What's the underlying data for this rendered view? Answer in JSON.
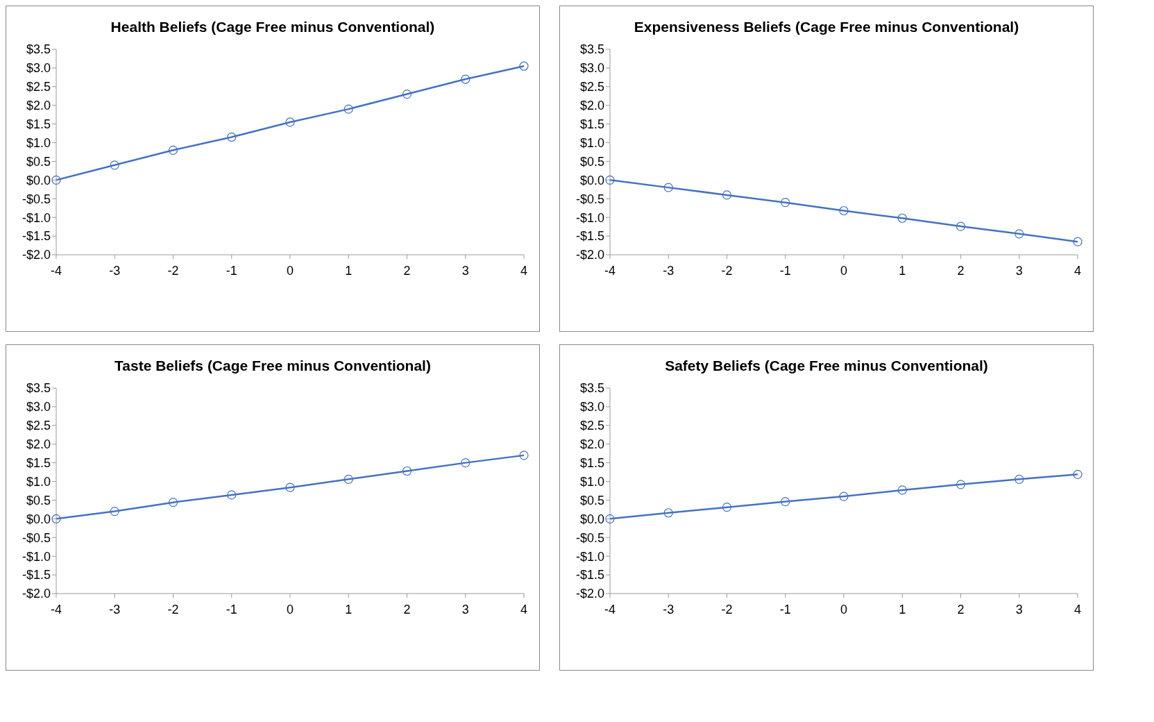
{
  "chart_data": [
    {
      "type": "line",
      "title": "Health Beliefs (Cage Free minus Conventional)",
      "categories": [
        "-4",
        "-3",
        "-2",
        "-1",
        "0",
        "1",
        "2",
        "3",
        "4"
      ],
      "series": [
        {
          "color": "#4472c4",
          "values": [
            0,
            0.4,
            0.8,
            1.15,
            1.55,
            1.9,
            2.3,
            2.7,
            3.05
          ]
        }
      ],
      "ylim": [
        -2,
        3.5
      ],
      "yticks": [
        {
          "value": -2,
          "label": "-$2.0"
        },
        {
          "value": -1.5,
          "label": "-$1.5"
        },
        {
          "value": -1,
          "label": "-$1.0"
        },
        {
          "value": -0.5,
          "label": "-$0.5"
        },
        {
          "value": 0,
          "label": "$0.0"
        },
        {
          "value": 0.5,
          "label": "$0.5"
        },
        {
          "value": 1,
          "label": "$1.0"
        },
        {
          "value": 1.5,
          "label": "$1.5"
        },
        {
          "value": 2,
          "label": "$2.0"
        },
        {
          "value": 2.5,
          "label": "$2.5"
        },
        {
          "value": 3,
          "label": "$3.0"
        },
        {
          "value": 3.5,
          "label": "$3.5"
        }
      ],
      "marker": "circle",
      "line_style": "solid",
      "grid": false,
      "legend": false
    },
    {
      "type": "line",
      "title": "Expensiveness Beliefs (Cage Free minus Conventional)",
      "categories": [
        "-4",
        "-3",
        "-2",
        "-1",
        "0",
        "1",
        "2",
        "3",
        "4"
      ],
      "series": [
        {
          "color": "#4472c4",
          "values": [
            0,
            -0.2,
            -0.4,
            -0.6,
            -0.82,
            -1.02,
            -1.24,
            -1.44,
            -1.65
          ]
        }
      ],
      "ylim": [
        -2,
        3.5
      ],
      "yticks": [
        {
          "value": -2,
          "label": "-$2.0"
        },
        {
          "value": -1.5,
          "label": "-$1.5"
        },
        {
          "value": -1,
          "label": "-$1.0"
        },
        {
          "value": -0.5,
          "label": "-$0.5"
        },
        {
          "value": 0,
          "label": "$0.0"
        },
        {
          "value": 0.5,
          "label": "$0.5"
        },
        {
          "value": 1,
          "label": "$1.0"
        },
        {
          "value": 1.5,
          "label": "$1.5"
        },
        {
          "value": 2,
          "label": "$2.0"
        },
        {
          "value": 2.5,
          "label": "$2.5"
        },
        {
          "value": 3,
          "label": "$3.0"
        },
        {
          "value": 3.5,
          "label": "$3.5"
        }
      ],
      "marker": "circle",
      "line_style": "solid",
      "grid": false,
      "legend": false
    },
    {
      "type": "line",
      "title": "Taste Beliefs (Cage Free minus Conventional)",
      "categories": [
        "-4",
        "-3",
        "-2",
        "-1",
        "0",
        "1",
        "2",
        "3",
        "4"
      ],
      "series": [
        {
          "color": "#4472c4",
          "values": [
            0,
            0.2,
            0.44,
            0.64,
            0.84,
            1.06,
            1.28,
            1.5,
            1.7
          ]
        }
      ],
      "ylim": [
        -2,
        3.5
      ],
      "yticks": [
        {
          "value": -2,
          "label": "-$2.0"
        },
        {
          "value": -1.5,
          "label": "-$1.5"
        },
        {
          "value": -1,
          "label": "-$1.0"
        },
        {
          "value": -0.5,
          "label": "-$0.5"
        },
        {
          "value": 0,
          "label": "$0.0"
        },
        {
          "value": 0.5,
          "label": "$0.5"
        },
        {
          "value": 1,
          "label": "$1.0"
        },
        {
          "value": 1.5,
          "label": "$1.5"
        },
        {
          "value": 2,
          "label": "$2.0"
        },
        {
          "value": 2.5,
          "label": "$2.5"
        },
        {
          "value": 3,
          "label": "$3.0"
        },
        {
          "value": 3.5,
          "label": "$3.5"
        }
      ],
      "marker": "circle",
      "line_style": "solid",
      "grid": false,
      "legend": false
    },
    {
      "type": "line",
      "title": "Safety Beliefs (Cage Free minus Conventional)",
      "categories": [
        "-4",
        "-3",
        "-2",
        "-1",
        "0",
        "1",
        "2",
        "3",
        "4"
      ],
      "series": [
        {
          "color": "#4472c4",
          "values": [
            0,
            0.16,
            0.31,
            0.46,
            0.6,
            0.77,
            0.92,
            1.06,
            1.19
          ]
        }
      ],
      "ylim": [
        -2,
        3.5
      ],
      "yticks": [
        {
          "value": -2,
          "label": "-$2.0"
        },
        {
          "value": -1.5,
          "label": "-$1.5"
        },
        {
          "value": -1,
          "label": "-$1.0"
        },
        {
          "value": -0.5,
          "label": "-$0.5"
        },
        {
          "value": 0,
          "label": "$0.0"
        },
        {
          "value": 0.5,
          "label": "$0.5"
        },
        {
          "value": 1,
          "label": "$1.0"
        },
        {
          "value": 1.5,
          "label": "$1.5"
        },
        {
          "value": 2,
          "label": "$2.0"
        },
        {
          "value": 2.5,
          "label": "$2.5"
        },
        {
          "value": 3,
          "label": "$3.0"
        },
        {
          "value": 3.5,
          "label": "$3.5"
        }
      ],
      "marker": "circle",
      "line_style": "solid",
      "grid": false,
      "legend": false
    }
  ]
}
